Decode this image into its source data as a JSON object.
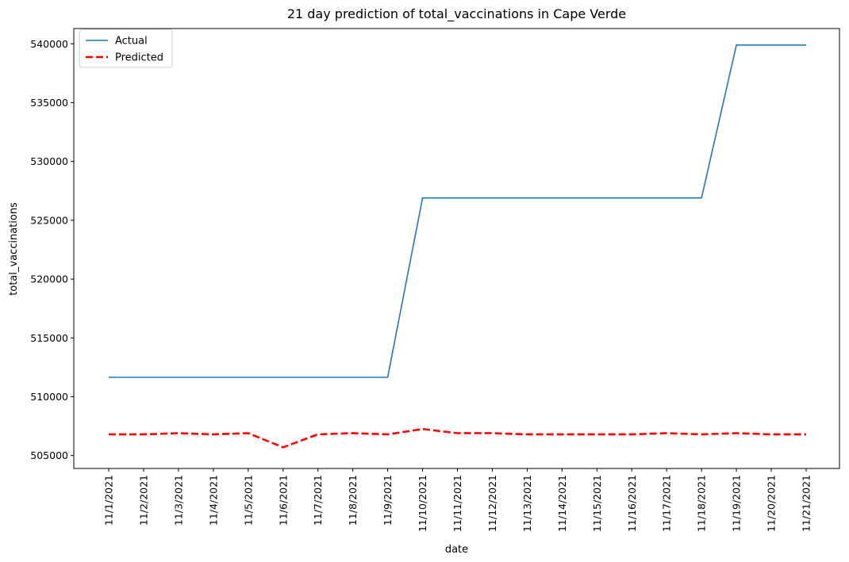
{
  "chart_data": {
    "type": "line",
    "title": "21 day prediction of total_vaccinations in Cape Verde",
    "xlabel": "date",
    "ylabel": "total_vaccinations",
    "categories": [
      "11/1/2021",
      "11/2/2021",
      "11/3/2021",
      "11/4/2021",
      "11/5/2021",
      "11/6/2021",
      "11/7/2021",
      "11/8/2021",
      "11/9/2021",
      "11/10/2021",
      "11/11/2021",
      "11/12/2021",
      "11/13/2021",
      "11/14/2021",
      "11/15/2021",
      "11/16/2021",
      "11/17/2021",
      "11/18/2021",
      "11/19/2021",
      "11/20/2021",
      "11/21/2021"
    ],
    "yticks": [
      505000,
      510000,
      515000,
      520000,
      525000,
      530000,
      535000,
      540000
    ],
    "ylim": [
      503900,
      541300
    ],
    "grid": false,
    "legend": "top-left",
    "series": [
      {
        "name": "Actual",
        "color": "#1f77b4",
        "style": "solid",
        "values": [
          511650,
          511650,
          511650,
          511650,
          511650,
          511650,
          511650,
          511650,
          511650,
          526900,
          526900,
          526900,
          526900,
          526900,
          526900,
          526900,
          526900,
          526900,
          539900,
          539900,
          539900
        ]
      },
      {
        "name": "Predicted",
        "color": "#ff0000",
        "style": "dashed",
        "values": [
          506800,
          506800,
          506900,
          506800,
          506900,
          505700,
          506800,
          506900,
          506800,
          507250,
          506900,
          506900,
          506800,
          506800,
          506800,
          506800,
          506900,
          506800,
          506900,
          506800,
          506800
        ]
      }
    ]
  }
}
